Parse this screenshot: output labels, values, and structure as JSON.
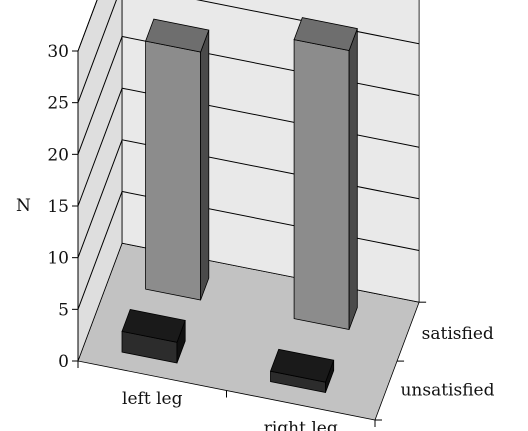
{
  "chart_data": {
    "type": "bar",
    "subtype": "3d-bar",
    "title": "",
    "ylabel": "N",
    "ylim": [
      0,
      30
    ],
    "yticks": [
      0,
      5,
      10,
      15,
      20,
      25,
      30
    ],
    "categories": [
      "left leg",
      "right leg"
    ],
    "depth_categories": [
      "satisfied",
      "unsatisfied"
    ],
    "series": [
      {
        "name": "satisfied",
        "values": [
          24,
          27
        ],
        "color_front": "#8c8c8c",
        "color_side": "#4a4a4a",
        "color_top": "#6e6e6e"
      },
      {
        "name": "unsatisfied",
        "values": [
          2,
          1
        ],
        "color_front": "#2c2c2c",
        "color_side": "#111111",
        "color_top": "#1a1a1a"
      }
    ],
    "grid": true,
    "colors": {
      "floor": "#c2c2c2",
      "back_wall": "#e9e9e9",
      "side_wall": "#dedede",
      "gridline": "#000000"
    }
  }
}
